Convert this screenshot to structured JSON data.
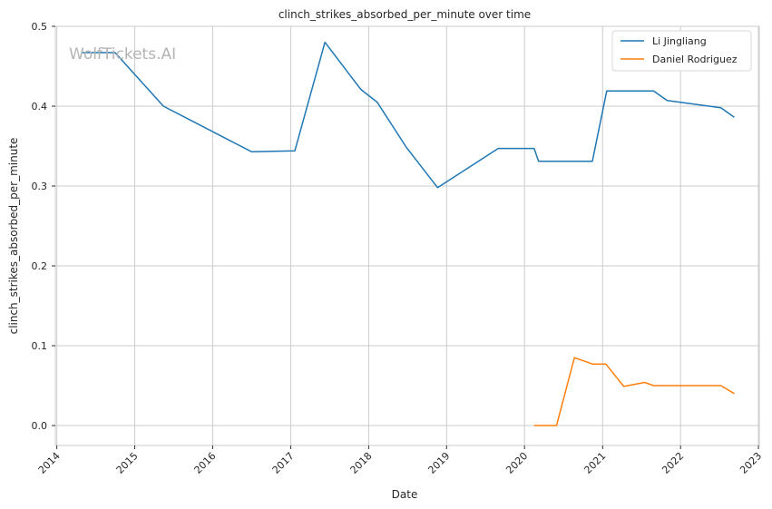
{
  "chart_data": {
    "type": "line",
    "title": "clinch_strikes_absorbed_per_minute over time",
    "xlabel": "Date",
    "ylabel": "clinch_strikes_absorbed_per_minute",
    "watermark": "WolfTickets.AI",
    "x_ticks": [
      "2014",
      "2015",
      "2016",
      "2017",
      "2018",
      "2019",
      "2020",
      "2021",
      "2022",
      "2023"
    ],
    "y_ticks": [
      "0.0",
      "0.1",
      "0.2",
      "0.3",
      "0.4",
      "0.5"
    ],
    "xlim": [
      "2013-12-25",
      "2023-01-05"
    ],
    "ylim": [
      -0.025,
      0.5
    ],
    "grid": true,
    "legend_position": "top-right",
    "series": [
      {
        "name": "Li Jingliang",
        "color": "#1f77b4",
        "points": [
          [
            "2014-05-01",
            0.467
          ],
          [
            "2014-10-01",
            0.467
          ],
          [
            "2015-05-15",
            0.4
          ],
          [
            "2016-07-01",
            0.343
          ],
          [
            "2017-01-20",
            0.344
          ],
          [
            "2017-06-10",
            0.48
          ],
          [
            "2017-11-25",
            0.421
          ],
          [
            "2018-02-10",
            0.405
          ],
          [
            "2018-06-25",
            0.349
          ],
          [
            "2018-11-20",
            0.298
          ],
          [
            "2019-08-31",
            0.347
          ],
          [
            "2020-02-15",
            0.347
          ],
          [
            "2020-03-07",
            0.331
          ],
          [
            "2020-11-14",
            0.331
          ],
          [
            "2021-01-20",
            0.419
          ],
          [
            "2021-08-28",
            0.419
          ],
          [
            "2021-10-30",
            0.407
          ],
          [
            "2022-07-09",
            0.398
          ],
          [
            "2022-09-10",
            0.386
          ]
        ]
      },
      {
        "name": "Daniel Rodriguez",
        "color": "#ff7f0e",
        "points": [
          [
            "2020-02-15",
            0.0
          ],
          [
            "2020-05-30",
            0.0
          ],
          [
            "2020-08-22",
            0.085
          ],
          [
            "2020-11-14",
            0.077
          ],
          [
            "2021-01-16",
            0.077
          ],
          [
            "2021-04-10",
            0.049
          ],
          [
            "2021-07-17",
            0.054
          ],
          [
            "2021-08-28",
            0.05
          ],
          [
            "2022-07-09",
            0.05
          ],
          [
            "2022-09-10",
            0.04
          ]
        ]
      }
    ]
  }
}
